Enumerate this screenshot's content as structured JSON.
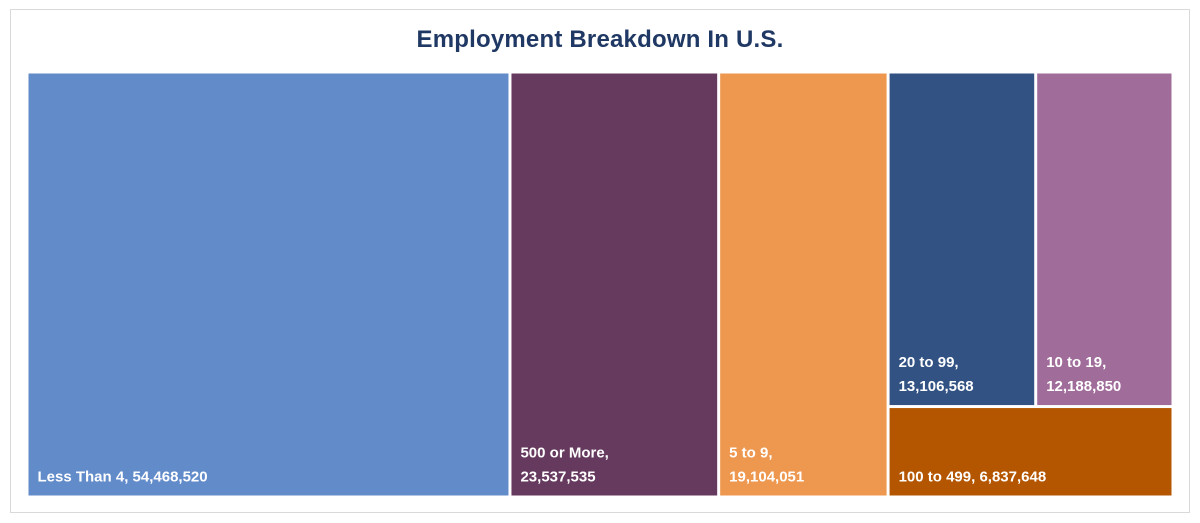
{
  "chart_data": {
    "type": "treemap",
    "title": "Employment Breakdown In U.S.",
    "items": [
      {
        "name": "Less Than 4",
        "value": 54468520,
        "label": [
          "Less Than 4, 54,468,520"
        ],
        "color": "#628bca"
      },
      {
        "name": "500 or More",
        "value": 23537535,
        "label": [
          "500 or More,",
          "23,537,535"
        ],
        "color": "#663a5e"
      },
      {
        "name": "5 to 9",
        "value": 19104051,
        "label": [
          "5 to 9,",
          "19,104,051"
        ],
        "color": "#ee974e"
      },
      {
        "name": "20 to 99",
        "value": 13106568,
        "label": [
          "20 to 99,",
          "13,106,568"
        ],
        "color": "#325283"
      },
      {
        "name": "10 to 19",
        "value": 12188850,
        "label": [
          "10 to 19,",
          "12,188,850"
        ],
        "color": "#a06c9a"
      },
      {
        "name": "100 to 499",
        "value": 6837648,
        "label": [
          "100 to 499, 6,837,648"
        ],
        "color": "#b45500"
      }
    ]
  }
}
